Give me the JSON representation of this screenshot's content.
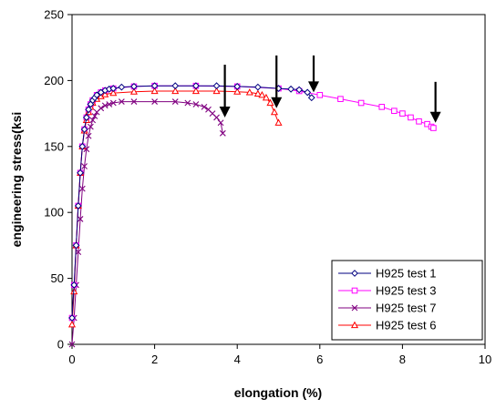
{
  "chart_data": {
    "type": "line",
    "title": "",
    "xlabel": "elongation (%)",
    "ylabel": "engineering stress(ksi",
    "xlim": [
      0,
      10
    ],
    "ylim": [
      0,
      250
    ],
    "xticks": [
      0,
      2,
      4,
      6,
      8,
      10
    ],
    "yticks": [
      0,
      50,
      100,
      150,
      200,
      250
    ],
    "grid": false,
    "legend_position": "bottom-right",
    "series": [
      {
        "name": "H925 test 1",
        "color": "#000080",
        "marker": "diamond",
        "x": [
          0,
          0.05,
          0.1,
          0.15,
          0.2,
          0.25,
          0.3,
          0.35,
          0.4,
          0.45,
          0.5,
          0.55,
          0.6,
          0.7,
          0.8,
          0.9,
          1.0,
          1.2,
          1.5,
          2.0,
          2.5,
          3.0,
          3.5,
          4.0,
          4.5,
          5.0,
          5.3,
          5.5,
          5.7,
          5.8
        ],
        "y": [
          20,
          45,
          75,
          105,
          130,
          150,
          163,
          172,
          178,
          182,
          185,
          187,
          189,
          191,
          192.5,
          193.5,
          194,
          195,
          195.5,
          196,
          196,
          196,
          196,
          195.5,
          195,
          194,
          193.5,
          193,
          191,
          187
        ]
      },
      {
        "name": "H925 test 3",
        "color": "#ff00ff",
        "marker": "square",
        "x": [
          0,
          0.05,
          0.1,
          0.15,
          0.2,
          0.25,
          0.3,
          0.35,
          0.4,
          0.45,
          0.5,
          0.6,
          0.7,
          0.8,
          1.0,
          1.5,
          2.0,
          3.0,
          4.0,
          5.0,
          5.5,
          6.0,
          6.5,
          7.0,
          7.5,
          7.8,
          8.0,
          8.2,
          8.4,
          8.6,
          8.7,
          8.75
        ],
        "y": [
          20,
          45,
          75,
          105,
          130,
          150,
          163,
          172,
          178,
          182,
          185,
          189,
          191,
          192.5,
          194,
          195.5,
          196,
          196,
          195.5,
          194,
          192,
          189,
          186,
          183,
          180,
          177,
          175,
          172,
          169,
          167,
          165,
          164
        ]
      },
      {
        "name": "H925 test 7",
        "color": "#800080",
        "marker": "x",
        "x": [
          0,
          0.05,
          0.1,
          0.15,
          0.2,
          0.25,
          0.3,
          0.35,
          0.4,
          0.45,
          0.5,
          0.55,
          0.6,
          0.7,
          0.8,
          0.9,
          1.0,
          1.2,
          1.5,
          2.0,
          2.5,
          2.8,
          3.0,
          3.2,
          3.3,
          3.4,
          3.5,
          3.6,
          3.65
        ],
        "y": [
          0,
          20,
          45,
          70,
          95,
          118,
          135,
          148,
          158,
          165,
          170,
          173,
          176,
          179,
          181,
          182,
          183,
          184,
          184,
          184,
          184,
          183,
          182,
          180,
          178,
          175,
          172,
          168,
          160
        ]
      },
      {
        "name": "H925 test 6",
        "color": "#ff0000",
        "marker": "triangle",
        "x": [
          0,
          0.05,
          0.1,
          0.15,
          0.2,
          0.25,
          0.3,
          0.35,
          0.4,
          0.45,
          0.5,
          0.6,
          0.7,
          0.8,
          1.0,
          1.5,
          2.0,
          2.5,
          3.0,
          3.5,
          4.0,
          4.3,
          4.5,
          4.6,
          4.7,
          4.8,
          4.9,
          5.0
        ],
        "y": [
          15,
          40,
          75,
          105,
          130,
          150,
          162,
          170,
          176,
          180,
          183,
          186,
          188,
          189.5,
          190.5,
          191.5,
          192,
          192,
          192,
          192,
          191.5,
          191,
          190,
          189,
          187,
          183,
          176,
          168
        ]
      }
    ],
    "annotations": [
      {
        "type": "arrow",
        "x": 3.7,
        "y_from": 212,
        "y_to": 172
      },
      {
        "type": "arrow",
        "x": 4.95,
        "y_from": 219,
        "y_to": 179
      },
      {
        "type": "arrow",
        "x": 5.85,
        "y_from": 219,
        "y_to": 191
      },
      {
        "type": "arrow",
        "x": 8.8,
        "y_from": 199,
        "y_to": 168
      }
    ]
  }
}
